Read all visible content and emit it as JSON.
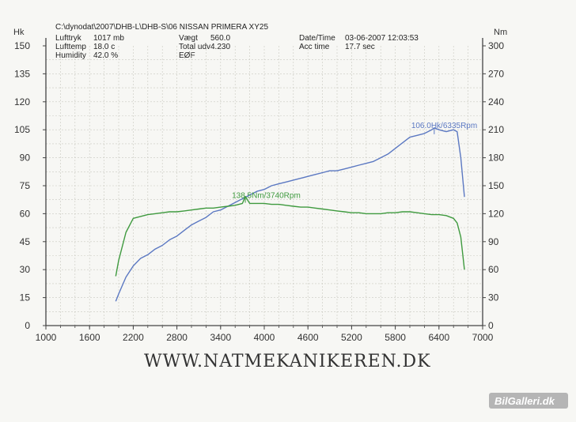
{
  "header": {
    "path": "C:\\dynodat\\2007\\DHB-L\\DHB-S\\06 NISSAN PRIMERA XY25",
    "rows": [
      [
        "Lufttryk",
        "1017 mb",
        "Vægt",
        "560.0",
        "Date/Time",
        "03-06-2007 12:03:53"
      ],
      [
        "Lufttemp",
        "18.0 c",
        "Total udv",
        "4.230",
        "Acc time",
        "17.7 sec"
      ],
      [
        "Humidity",
        "42.0 %",
        "EØF",
        "",
        "",
        ""
      ]
    ]
  },
  "website": "WWW.NATMEKANIKEREN.DK",
  "watermark": "BilGalleri.dk",
  "chart_data": {
    "type": "line",
    "xlim": [
      1000,
      7000
    ],
    "x_ticks": [
      1000,
      1600,
      2200,
      2800,
      3400,
      4000,
      4600,
      5200,
      5800,
      6400,
      7000
    ],
    "y_left": {
      "unit": "Hk",
      "range": [
        0,
        150
      ],
      "ticks": [
        0,
        15,
        30,
        45,
        60,
        75,
        90,
        105,
        120,
        135,
        150
      ]
    },
    "y_right": {
      "unit": "Nm",
      "range": [
        0,
        300
      ],
      "ticks": [
        0,
        30,
        60,
        90,
        120,
        150,
        180,
        210,
        240,
        270,
        300
      ]
    },
    "grid": true,
    "series": [
      {
        "axis": "left",
        "color": "#5b78c2",
        "x": [
          1960,
          2000,
          2100,
          2200,
          2300,
          2400,
          2500,
          2600,
          2700,
          2800,
          2900,
          3000,
          3100,
          3200,
          3300,
          3400,
          3500,
          3600,
          3700,
          3800,
          3900,
          4000,
          4100,
          4200,
          4300,
          4400,
          4500,
          4600,
          4700,
          4800,
          4900,
          5000,
          5100,
          5200,
          5300,
          5400,
          5500,
          5600,
          5700,
          5800,
          5900,
          6000,
          6100,
          6200,
          6300,
          6335,
          6400,
          6500,
          6600,
          6650,
          6700,
          6750
        ],
        "y": [
          13,
          17,
          26,
          32,
          36,
          38,
          41,
          43,
          46,
          48,
          51,
          54,
          56,
          58,
          61,
          62,
          64,
          66,
          68,
          70,
          72,
          73,
          75,
          76,
          77,
          78,
          79,
          80,
          81,
          82,
          83,
          83,
          84,
          85,
          86,
          87,
          88,
          90,
          92,
          95,
          98,
          101,
          102,
          103,
          105,
          106,
          105,
          104,
          105,
          104,
          90,
          69
        ]
      },
      {
        "axis": "right",
        "color": "#3f9a3f",
        "x": [
          1960,
          2000,
          2100,
          2200,
          2300,
          2400,
          2500,
          2600,
          2700,
          2800,
          2900,
          3000,
          3100,
          3200,
          3300,
          3400,
          3500,
          3600,
          3700,
          3740,
          3800,
          3900,
          4000,
          4100,
          4200,
          4300,
          4400,
          4500,
          4600,
          4700,
          4800,
          4900,
          5000,
          5100,
          5200,
          5300,
          5400,
          5500,
          5600,
          5700,
          5800,
          5900,
          6000,
          6100,
          6200,
          6300,
          6400,
          6500,
          6600,
          6650,
          6700,
          6750
        ],
        "y": [
          53,
          70,
          100,
          115,
          117,
          119,
          120,
          121,
          122,
          122,
          123,
          124,
          125,
          126,
          126,
          127,
          128,
          129,
          131,
          138.5,
          131,
          131,
          131,
          130,
          130,
          129,
          128,
          127,
          127,
          126,
          125,
          124,
          123,
          122,
          121,
          121,
          120,
          120,
          120,
          121,
          121,
          122,
          122,
          121,
          120,
          119,
          119,
          118,
          115,
          110,
          95,
          60
        ]
      }
    ],
    "annotations": [
      {
        "series": 0,
        "x": 6335,
        "y": 106,
        "text": "106.0Hk/6335Rpm"
      },
      {
        "series": 1,
        "x": 3740,
        "y": 138.5,
        "text": "138.5Nm/3740Rpm"
      }
    ]
  }
}
